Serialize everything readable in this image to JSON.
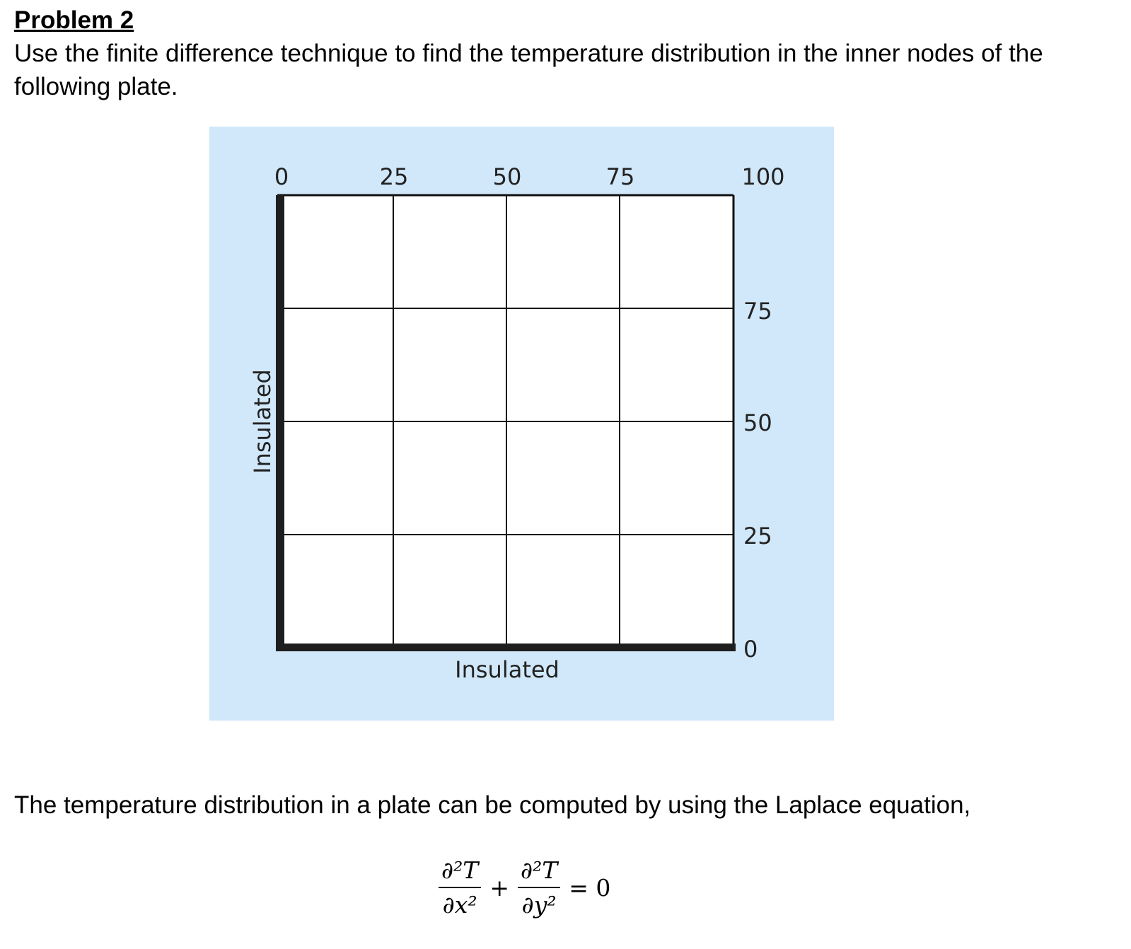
{
  "problem": {
    "title": "Problem 2",
    "statement": "Use the finite difference technique to find the temperature distribution in the inner nodes of the following plate."
  },
  "figure": {
    "top_labels": [
      "0",
      "25",
      "50",
      "75",
      "100"
    ],
    "right_labels": [
      "75",
      "50",
      "25",
      "0"
    ],
    "left_edge_label": "Insulated",
    "bottom_edge_label": "Insulated",
    "background_color": "#d1e8fa",
    "grid_cells": 4
  },
  "text": {
    "intro": "The temperature distribution in a plate can be computed by using the Laplace equation,"
  },
  "equation": {
    "term1_numerator": "∂²T",
    "term1_denominator": "∂x²",
    "plus": "+",
    "term2_numerator": "∂²T",
    "term2_denominator": "∂y²",
    "equals": "= 0"
  }
}
